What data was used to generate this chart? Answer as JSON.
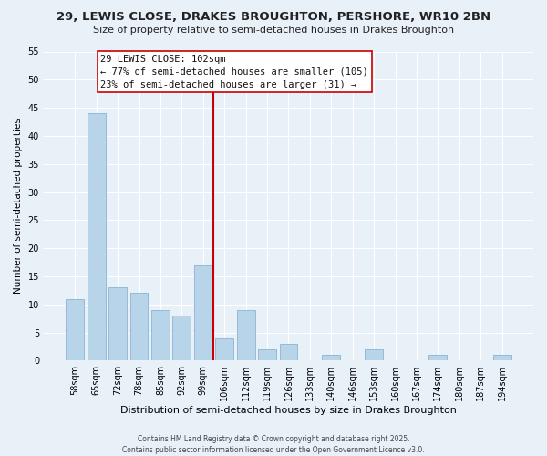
{
  "title": "29, LEWIS CLOSE, DRAKES BROUGHTON, PERSHORE, WR10 2BN",
  "subtitle": "Size of property relative to semi-detached houses in Drakes Broughton",
  "xlabel": "Distribution of semi-detached houses by size in Drakes Broughton",
  "ylabel": "Number of semi-detached properties",
  "categories": [
    "58sqm",
    "65sqm",
    "72sqm",
    "78sqm",
    "85sqm",
    "92sqm",
    "99sqm",
    "106sqm",
    "112sqm",
    "119sqm",
    "126sqm",
    "133sqm",
    "140sqm",
    "146sqm",
    "153sqm",
    "160sqm",
    "167sqm",
    "174sqm",
    "180sqm",
    "187sqm",
    "194sqm"
  ],
  "values": [
    11,
    44,
    13,
    12,
    9,
    8,
    17,
    4,
    9,
    2,
    3,
    0,
    1,
    0,
    2,
    0,
    0,
    1,
    0,
    0,
    1
  ],
  "bar_color": "#b8d4e8",
  "bar_edge_color": "#8ab4d4",
  "vline_color": "#cc0000",
  "ylim": [
    0,
    55
  ],
  "yticks": [
    0,
    5,
    10,
    15,
    20,
    25,
    30,
    35,
    40,
    45,
    50,
    55
  ],
  "annotation_title": "29 LEWIS CLOSE: 102sqm",
  "annotation_line1": "← 77% of semi-detached houses are smaller (105)",
  "annotation_line2": "23% of semi-detached houses are larger (31) →",
  "background_color": "#e8f0f8",
  "footer_line1": "Contains HM Land Registry data © Crown copyright and database right 2025.",
  "footer_line2": "Contains public sector information licensed under the Open Government Licence v3.0.",
  "title_fontsize": 9.5,
  "subtitle_fontsize": 8,
  "xlabel_fontsize": 8,
  "ylabel_fontsize": 7.5,
  "tick_fontsize": 7,
  "ann_fontsize": 7.5,
  "footer_fontsize": 5.5
}
